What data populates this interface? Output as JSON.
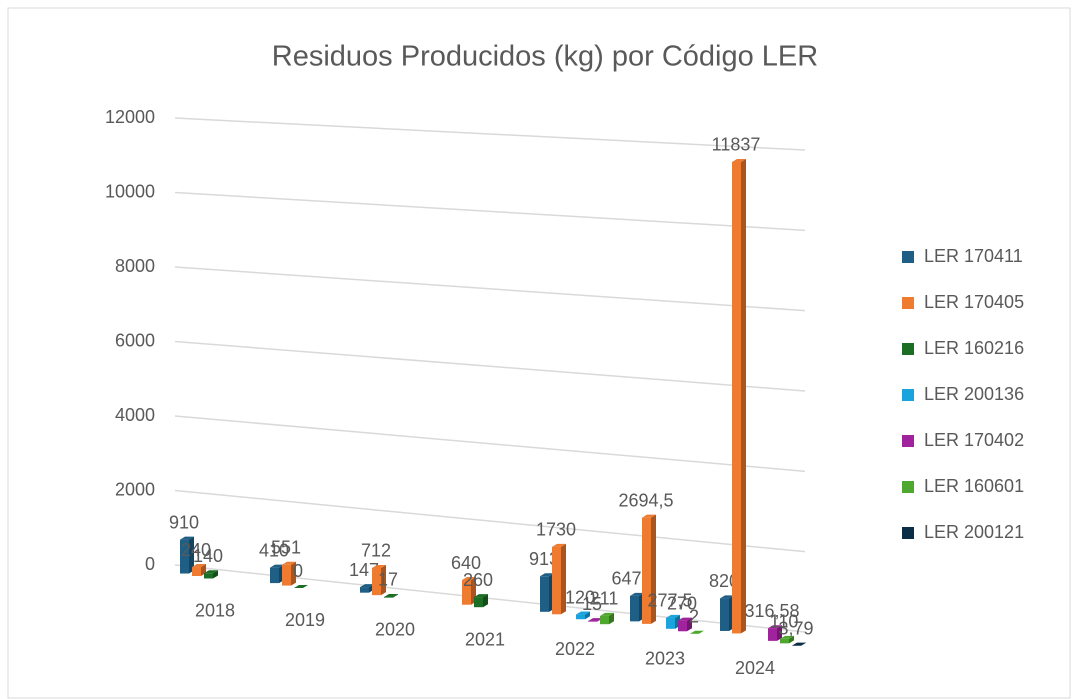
{
  "chart_data": {
    "type": "bar3d",
    "title": "Residuos Producidos (kg) por Código LER",
    "categories": [
      "2018",
      "2019",
      "2020",
      "2021",
      "2022",
      "2023",
      "2024"
    ],
    "ylim": [
      0,
      12000
    ],
    "yticks": [
      0,
      2000,
      4000,
      6000,
      8000,
      10000,
      12000
    ],
    "grid": true,
    "legend": "right",
    "series": [
      {
        "name": "LER 170411",
        "color": "#1f5f86",
        "values": [
          910,
          410,
          147,
          null,
          913,
          647.5,
          820
        ],
        "value_labels": [
          "910",
          "410",
          "147",
          null,
          "913",
          "647,5",
          "820"
        ]
      },
      {
        "name": "LER 170405",
        "color": "#ee7b30",
        "values": [
          240,
          551,
          712,
          640,
          1730,
          2694.5,
          11837
        ],
        "value_labels": [
          "240",
          "551",
          "712",
          "640",
          "1730",
          "2694,5",
          "11837"
        ]
      },
      {
        "name": "LER 160216",
        "color": "#1b6e23",
        "values": [
          140,
          0,
          17,
          260,
          null,
          null,
          null
        ]
      },
      {
        "name": "LER 200136",
        "color": "#1aa3dd",
        "values": [
          null,
          null,
          null,
          null,
          120,
          277.5,
          null
        ],
        "value_labels": [
          null,
          null,
          null,
          null,
          "120",
          "277,5",
          null
        ]
      },
      {
        "name": "LER 170402",
        "color": "#a0229c",
        "values": [
          null,
          null,
          null,
          null,
          15,
          270,
          316.58
        ],
        "value_labels": [
          null,
          null,
          null,
          null,
          "15",
          "270",
          "316,58"
        ]
      },
      {
        "name": "LER 160601",
        "color": "#4ea72e",
        "values": [
          null,
          null,
          null,
          null,
          211,
          2,
          110
        ]
      },
      {
        "name": "LER 200121",
        "color": "#0b2d45",
        "values": [
          null,
          null,
          null,
          null,
          null,
          null,
          3.79
        ],
        "value_labels": [
          null,
          null,
          null,
          null,
          null,
          null,
          "3,79"
        ]
      }
    ]
  }
}
